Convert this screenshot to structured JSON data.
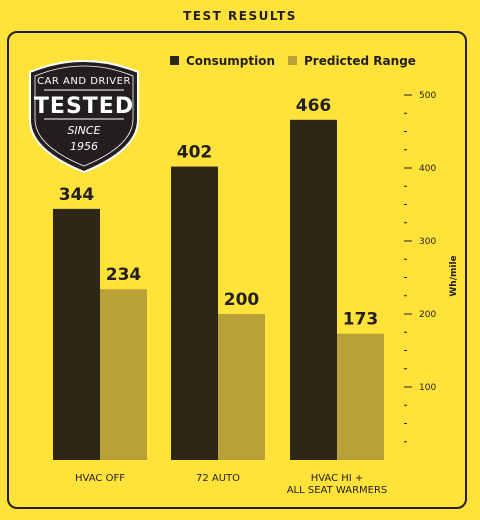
{
  "header": {
    "title": "TEST RESULTS"
  },
  "badge": {
    "line1": "CAR AND DRIVER",
    "line2": "TESTED",
    "line3": "SINCE",
    "line4": "1956"
  },
  "colors": {
    "consumption": "#2F2715",
    "range": "#B9A138",
    "background": "#FFE23A",
    "ink": "#231F20"
  },
  "chart_data": {
    "type": "bar",
    "title": "",
    "categories": [
      "HVAC OFF",
      "72 AUTO",
      "HVAC HI + ALL SEAT WARMERS"
    ],
    "series": [
      {
        "name": "Consumption",
        "values": [
          344,
          402,
          466
        ]
      },
      {
        "name": "Predicted Range",
        "values": [
          234,
          200,
          173
        ]
      }
    ],
    "ylabel": "Wh/mile",
    "ylim": [
      0,
      500
    ],
    "yticks": [
      100,
      200,
      300,
      400,
      500
    ],
    "legend": "top-right",
    "grid": false
  }
}
